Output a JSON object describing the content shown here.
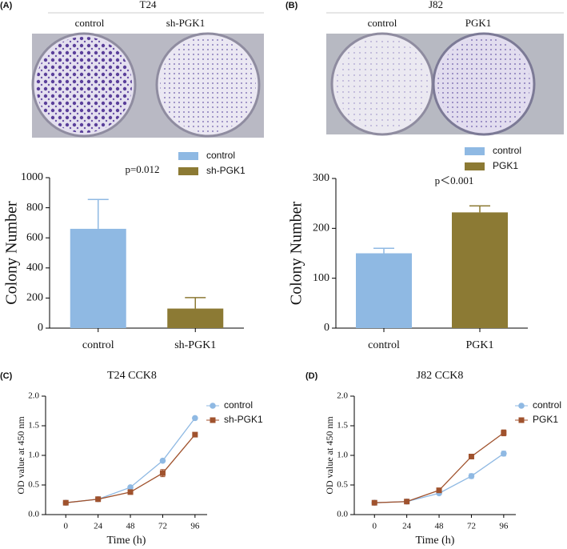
{
  "panels": [
    {
      "label": "(A)",
      "title": "T24",
      "photo_labels": [
        "control",
        "sh-PGK1"
      ]
    },
    {
      "label": "(B)",
      "title": "J82",
      "photo_labels": [
        "control",
        "PGK1"
      ]
    },
    {
      "label": "(C)"
    },
    {
      "label": "(D)"
    }
  ],
  "chart_data": [
    {
      "type": "bar",
      "ylabel": "Colony Number",
      "annotation": "p=0.012",
      "categories": [
        "control",
        "sh-PGK1"
      ],
      "values": [
        660,
        130
      ],
      "errors": [
        195,
        73
      ],
      "colors": [
        "#8fb9e3",
        "#8c7a34"
      ],
      "ylim": [
        0,
        1000
      ],
      "yticks": [
        0,
        200,
        400,
        600,
        800,
        1000
      ],
      "legend": "top-right"
    },
    {
      "type": "bar",
      "ylabel": "Colony Number",
      "annotation": "p＜0.001",
      "categories": [
        "control",
        "PGK1"
      ],
      "values": [
        150,
        232
      ],
      "errors": [
        10,
        13
      ],
      "colors": [
        "#8fb9e3",
        "#8c7a34"
      ],
      "ylim": [
        0,
        300
      ],
      "yticks": [
        0,
        100,
        200,
        300
      ],
      "legend": "top-right"
    },
    {
      "type": "line",
      "title": "T24 CCK8",
      "xlabel": "Time (h)",
      "ylabel": "OD value at 450 nm",
      "x": [
        0,
        24,
        48,
        72,
        96
      ],
      "xlim": [
        -15,
        105
      ],
      "xticks": [
        0,
        24,
        48,
        72,
        96
      ],
      "ylim": [
        0,
        2
      ],
      "yticks": [
        {
          "value": 0,
          "label": "0.0"
        },
        0.5,
        {
          "value": 1,
          "label": "1.0"
        },
        1.5,
        {
          "value": 2,
          "label": "2.0"
        }
      ],
      "legend": "right",
      "series": [
        {
          "name": "control",
          "color": "#8fb9e3",
          "marker": "circle",
          "values": [
            0.2,
            0.26,
            0.46,
            0.91,
            1.63
          ],
          "errors": [
            0.01,
            0.01,
            0.02,
            0.02,
            0.02
          ]
        },
        {
          "name": "sh-PGK1",
          "color": "#a0522d",
          "marker": "square",
          "values": [
            0.2,
            0.26,
            0.38,
            0.7,
            1.35
          ],
          "errors": [
            0.01,
            0.01,
            0.02,
            0.06,
            0.03
          ]
        }
      ]
    },
    {
      "type": "line",
      "title": "J82 CCK8",
      "xlabel": "Time (h)",
      "ylabel": "OD value at 450 nm",
      "x": [
        0,
        24,
        48,
        72,
        96
      ],
      "xlim": [
        -15,
        105
      ],
      "xticks": [
        0,
        24,
        48,
        72,
        96
      ],
      "ylim": [
        0,
        2
      ],
      "yticks": [
        {
          "value": 0,
          "label": "0.0"
        },
        0.5,
        {
          "value": 1,
          "label": "1.0"
        },
        1.5,
        {
          "value": 2,
          "label": "2.0"
        }
      ],
      "legend": "right",
      "series": [
        {
          "name": "control",
          "color": "#8fb9e3",
          "marker": "circle",
          "values": [
            0.2,
            0.22,
            0.36,
            0.65,
            1.03
          ],
          "errors": [
            0.01,
            0.01,
            0.02,
            0.04,
            0.04
          ]
        },
        {
          "name": "PGK1",
          "color": "#a0522d",
          "marker": "square",
          "values": [
            0.2,
            0.22,
            0.41,
            0.98,
            1.38
          ],
          "errors": [
            0.01,
            0.01,
            0.02,
            0.02,
            0.05
          ]
        }
      ]
    }
  ]
}
